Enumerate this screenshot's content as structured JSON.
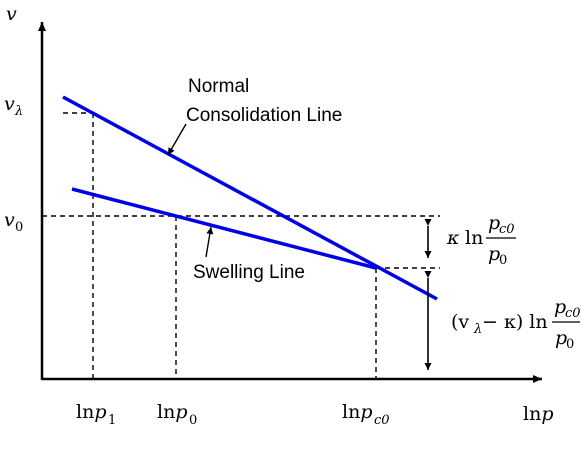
{
  "axes": {
    "y_label": "v",
    "x_label": "lnp"
  },
  "y_ticks": {
    "v_lambda": {
      "base": "v",
      "sub": "λ"
    },
    "v_0": {
      "base": "v",
      "sub": "0"
    }
  },
  "x_ticks": {
    "p1": {
      "prefix": "ln",
      "var": "p",
      "sub": "1"
    },
    "p0": {
      "prefix": "ln",
      "var": "p",
      "sub": "0"
    },
    "pc0": {
      "prefix": "ln",
      "var": "p",
      "sub": "c0"
    }
  },
  "labels": {
    "ncl_line1": "Normal",
    "ncl_line2": "Consolidation Line",
    "swelling": "Swelling Line"
  },
  "annotations": {
    "upper": {
      "kappa": "κ",
      "ln": "ln",
      "num_var": "p",
      "num_sub": "c0",
      "den_var": "p",
      "den_sub": "0"
    },
    "lower": {
      "lhs": "(v",
      "lhs_sub": "λ",
      "rhs": " − κ) ln",
      "num_var": "p",
      "num_sub": "c0",
      "den_var": "p",
      "den_sub": "0"
    }
  },
  "colors": {
    "line": "#0000e6",
    "axis": "#000000"
  }
}
